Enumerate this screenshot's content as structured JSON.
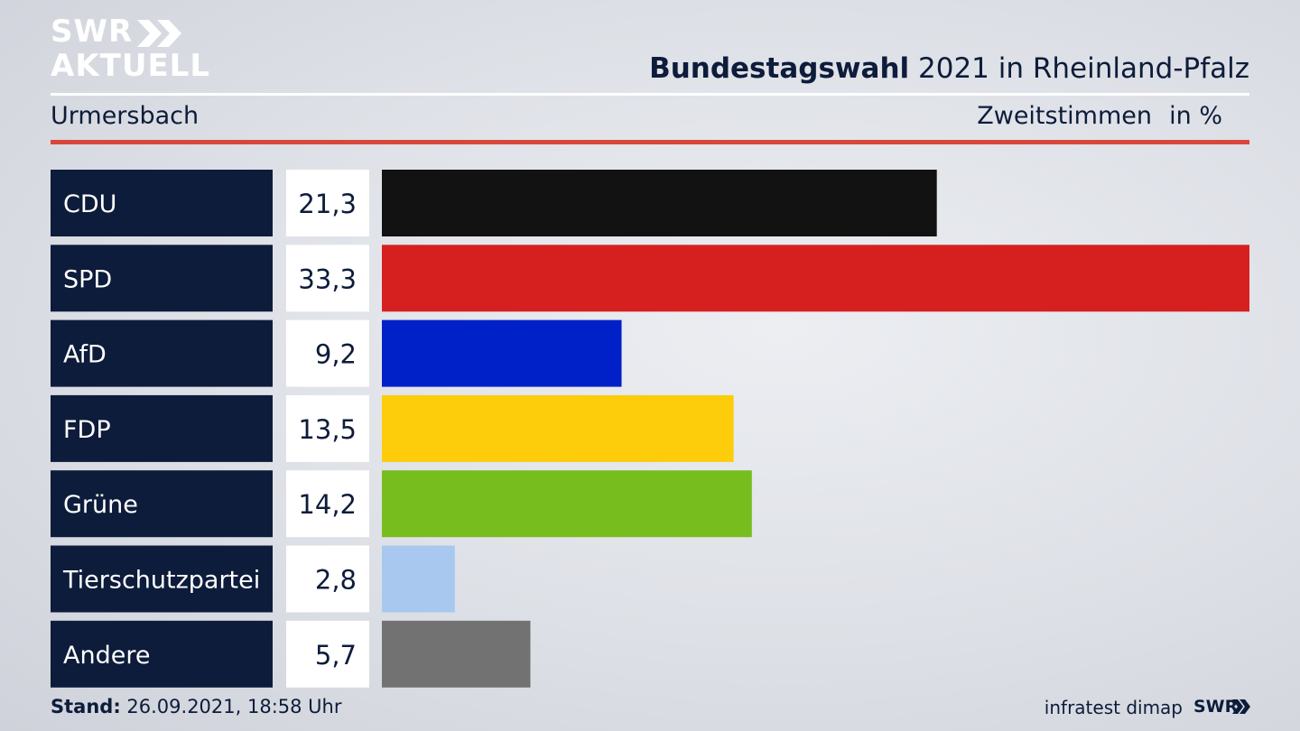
{
  "logo": {
    "line1": "SWR",
    "line2": "AKTUELL"
  },
  "header": {
    "title_bold": "Bundestagswahl",
    "title_rest": " 2021 in Rheinland-Pfalz",
    "region": "Urmersbach",
    "metric": "Zweitstimmen",
    "unit": "in %"
  },
  "footer": {
    "stand_label": "Stand:",
    "stand_value": " 26.09.2021, 18:58 Uhr",
    "source": "infratest dimap",
    "brand": "SWR"
  },
  "colors": {
    "label_bg": "#0d1c3a",
    "value_bg": "#ffffff",
    "accent_red_rule": "#d9473b"
  },
  "chart_data": {
    "type": "bar",
    "orientation": "horizontal",
    "categories": [
      "CDU",
      "SPD",
      "AfD",
      "FDP",
      "Grüne",
      "Tierschutzpartei",
      "Andere"
    ],
    "values": [
      21.3,
      33.3,
      9.2,
      13.5,
      14.2,
      2.8,
      5.7
    ],
    "value_labels": [
      "21,3",
      "33,3",
      "9,2",
      "13,5",
      "14,2",
      "2,8",
      "5,7"
    ],
    "bar_colors": [
      "#121212",
      "#d62020",
      "#0020c8",
      "#fdcc0a",
      "#78bd1e",
      "#a8c8f0",
      "#727272"
    ],
    "xlim": [
      0,
      33.3
    ],
    "grid": false,
    "legend": "none"
  }
}
